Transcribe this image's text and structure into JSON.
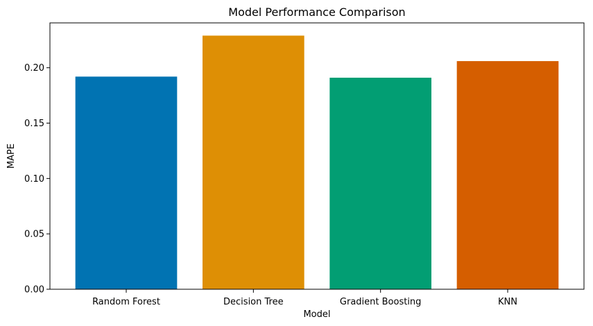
{
  "chart_data": {
    "type": "bar",
    "title": "Model Performance Comparison",
    "xlabel": "Model",
    "ylabel": "MAPE",
    "categories": [
      "Random Forest",
      "Decision Tree",
      "Gradient Boosting",
      "KNN"
    ],
    "values": [
      0.192,
      0.229,
      0.191,
      0.206
    ],
    "colors": [
      "#0173b2",
      "#de8f05",
      "#029e73",
      "#d55e00"
    ],
    "ylim": [
      0,
      0.2405
    ],
    "yticks": [
      0.0,
      0.05,
      0.1,
      0.15,
      0.2
    ],
    "ytick_labels": [
      "0.00",
      "0.05",
      "0.10",
      "0.15",
      "0.20"
    ],
    "grid": false,
    "legend": "none"
  }
}
